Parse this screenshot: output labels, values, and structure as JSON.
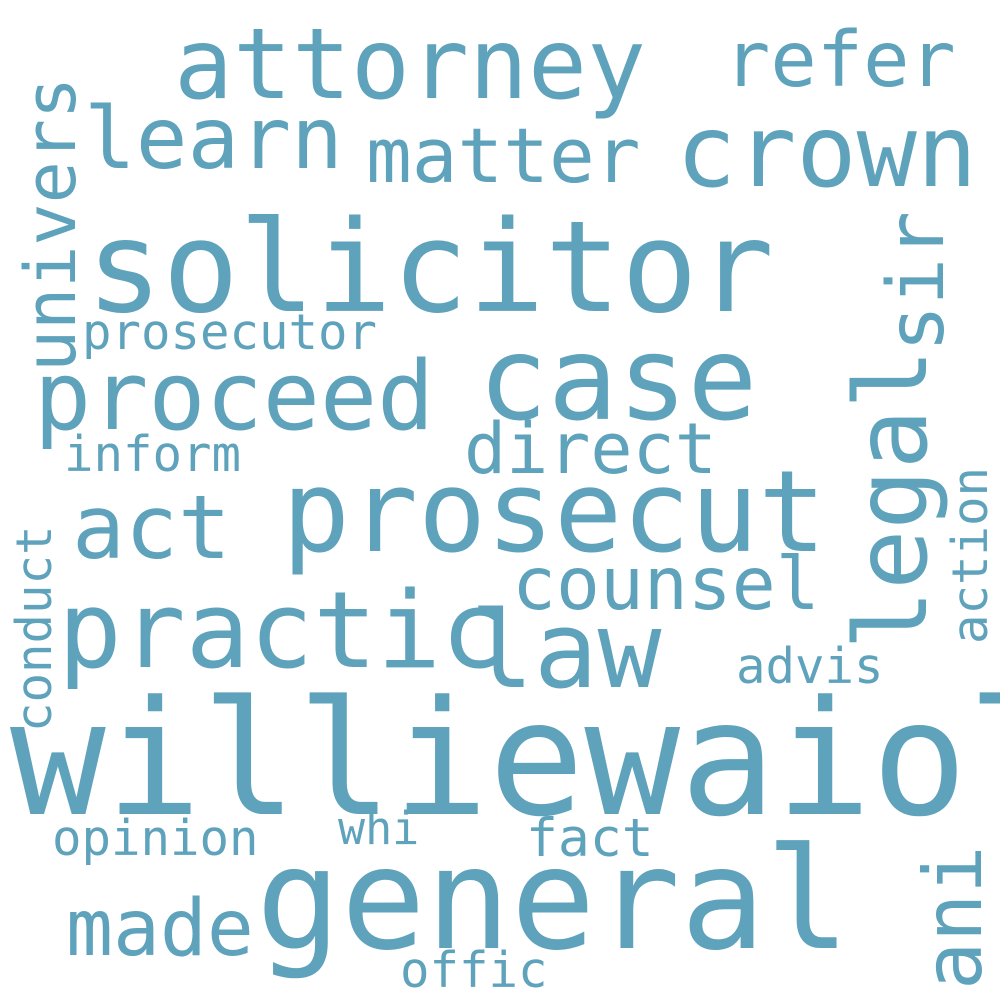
{
  "color": "#5fa2bb",
  "words": {
    "williewaiola": "williewaiola",
    "solicitor": "solicitor",
    "general": "general",
    "prosecut": "prosecut",
    "attorney": "attorney",
    "case": "case",
    "crown": "crown",
    "practic": "practic",
    "law": "law",
    "proceed": "proceed",
    "learn": "learn",
    "matter": "matter",
    "refer": "refer",
    "act": "act",
    "legal": "legal",
    "univers": "univers",
    "counsel": "counsel",
    "direct": "direct",
    "made": "made",
    "sir": "sir",
    "ani": "ani",
    "prosecutor": "prosecutor",
    "inform": "inform",
    "opinion": "opinion",
    "fact": "fact",
    "advis": "advis",
    "whi": "whi",
    "offic": "offic",
    "conduct": "conduct",
    "action": "action"
  }
}
